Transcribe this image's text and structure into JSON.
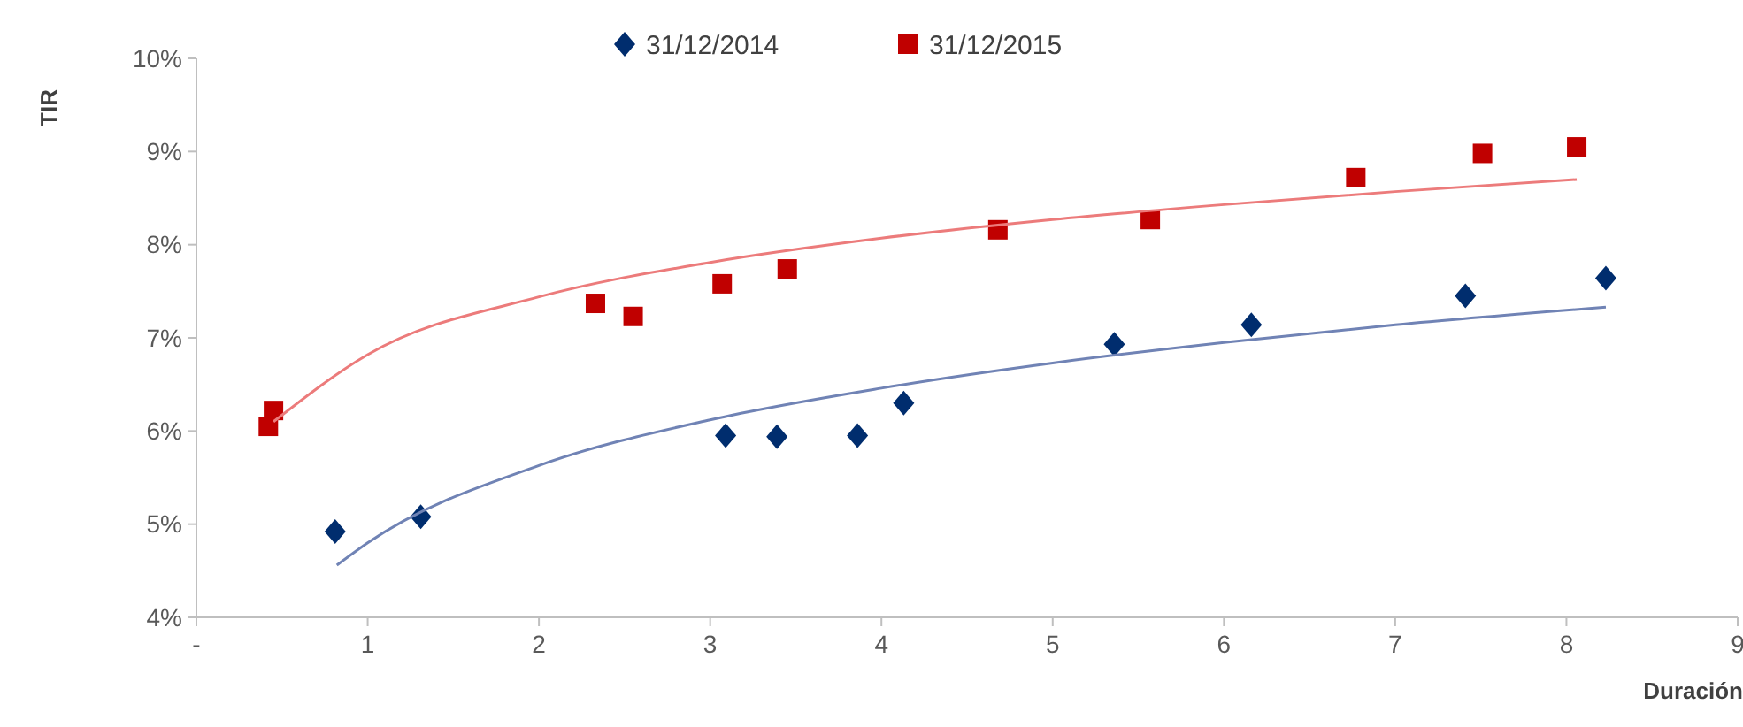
{
  "chart_data": {
    "type": "scatter",
    "xlabel": "Duración",
    "ylabel": "TIR",
    "xlim": [
      0,
      9
    ],
    "ylim": [
      4,
      10
    ],
    "xticks": [
      {
        "value": 0,
        "label": "-"
      },
      1,
      2,
      3,
      4,
      5,
      6,
      7,
      8,
      9
    ],
    "yticks": [
      {
        "value": 4,
        "label": "4%"
      },
      {
        "value": 5,
        "label": "5%"
      },
      {
        "value": 6,
        "label": "6%"
      },
      {
        "value": 7,
        "label": "7%"
      },
      {
        "value": 8,
        "label": "8%"
      },
      {
        "value": 9,
        "label": "9%"
      },
      {
        "value": 10,
        "label": "10%"
      }
    ],
    "grid": false,
    "legend": "top",
    "series": [
      {
        "name": "31/12/2014",
        "color": "#002d6e",
        "marker": "diamond",
        "x": [
          0.81,
          1.31,
          3.09,
          3.39,
          3.86,
          4.13,
          5.36,
          6.16,
          7.41,
          8.23
        ],
        "values": [
          4.92,
          5.08,
          5.95,
          5.94,
          5.95,
          6.3,
          6.93,
          7.14,
          7.45,
          7.64
        ]
      },
      {
        "name": "31/12/2015",
        "color": "#c00000",
        "marker": "square",
        "x": [
          0.42,
          0.45,
          2.33,
          2.55,
          3.07,
          3.45,
          4.68,
          5.57,
          6.77,
          7.51,
          8.06
        ],
        "values": [
          6.05,
          6.22,
          7.37,
          7.23,
          7.58,
          7.74,
          8.16,
          8.27,
          8.72,
          8.98,
          9.05
        ]
      },
      {
        "type": "line",
        "color": "#7083b5",
        "marker": "none",
        "line_style": "solid",
        "x": [
          0.82,
          1,
          2,
          3,
          4,
          5,
          6,
          7,
          8.23
        ],
        "values": [
          4.56,
          4.8,
          5.63,
          6.12,
          6.46,
          6.73,
          6.95,
          7.14,
          7.33
        ]
      },
      {
        "type": "line",
        "color": "#ec7b7b",
        "marker": "none",
        "line_style": "solid",
        "x": [
          0.45,
          1,
          2,
          3,
          4,
          5,
          6,
          7,
          8.06
        ],
        "values": [
          6.1,
          6.82,
          7.44,
          7.81,
          8.07,
          8.27,
          8.43,
          8.57,
          8.7
        ]
      }
    ]
  }
}
